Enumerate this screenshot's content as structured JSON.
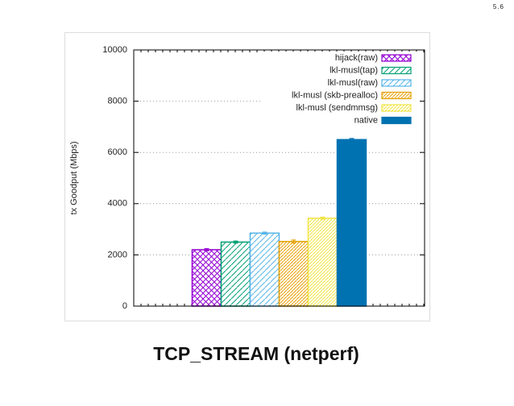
{
  "slide_number": "5.6",
  "chart_data": {
    "type": "bar",
    "title": "TCP_STREAM (netperf)",
    "y_label": "tx Goodput (Mbps)",
    "categories": [
      null
    ],
    "series": [
      {
        "name": "hijack(raw)",
        "color": "#9400d3",
        "hatch": "cross",
        "values": [
          2200
        ],
        "errors": [
          40
        ]
      },
      {
        "name": "lkl-musl(tap)",
        "color": "#009e73",
        "hatch": "diagonal",
        "values": [
          2500
        ],
        "errors": [
          40
        ]
      },
      {
        "name": "lkl-musl(raw)",
        "color": "#56b4e9",
        "hatch": "diagonal",
        "values": [
          2850
        ],
        "errors": [
          40
        ]
      },
      {
        "name": "lkl-musl (skb-prealloc)",
        "color": "#e69f00",
        "hatch": "dense",
        "values": [
          2520
        ],
        "errors": [
          60
        ]
      },
      {
        "name": "lkl-musl (sendmmsg)",
        "color": "#f0e442",
        "hatch": "dense",
        "values": [
          3430
        ],
        "errors": [
          40
        ]
      },
      {
        "name": "native",
        "color": "#0072b2",
        "hatch": "solid",
        "values": [
          6500
        ],
        "errors": [
          40
        ]
      }
    ],
    "ylim": [
      0,
      10000
    ],
    "yticks": [
      0,
      2000,
      4000,
      6000,
      8000,
      10000
    ],
    "grid": true,
    "legend": "upper right"
  }
}
